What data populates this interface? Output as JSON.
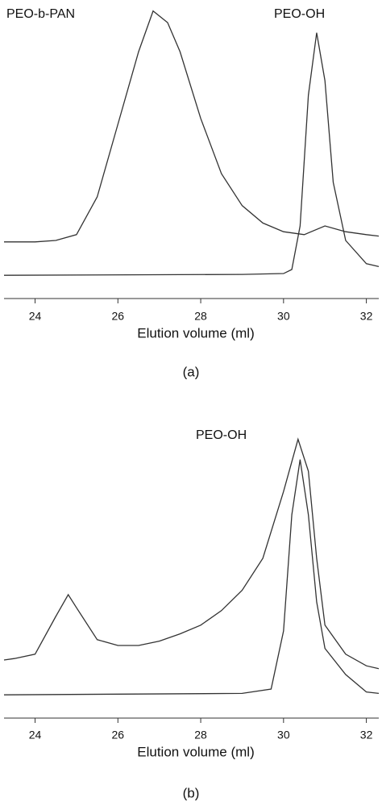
{
  "chart_data": [
    {
      "type": "line",
      "x_label": "Elution volume (ml)",
      "caption": "(a)",
      "xlim": [
        23.25,
        32.3
      ],
      "xticks": [
        24,
        26,
        28,
        30,
        32
      ],
      "ylim": [
        0,
        100
      ],
      "grid": false,
      "series": [
        {
          "name": "PEO-b-PAN",
          "color": "#333333",
          "x": [
            23.25,
            24,
            24.5,
            25,
            25.5,
            26,
            26.5,
            26.85,
            27.2,
            27.5,
            28,
            28.5,
            29,
            29.5,
            30,
            30.5,
            31,
            31.5,
            32,
            32.3
          ],
          "values": [
            19.5,
            19.5,
            20,
            22,
            35,
            60,
            85,
            99,
            95,
            85,
            62,
            43,
            32,
            26,
            23,
            22,
            25,
            23,
            22,
            21.5
          ]
        },
        {
          "name": "PEO-OH",
          "color": "#333333",
          "x": [
            23.25,
            29,
            30,
            30.2,
            30.4,
            30.6,
            30.8,
            31,
            31.2,
            31.5,
            32,
            32.3
          ],
          "values": [
            8,
            8.3,
            8.6,
            10,
            25,
            70,
            91.5,
            75,
            40,
            20,
            12,
            11
          ]
        }
      ]
    },
    {
      "type": "line",
      "x_label": "Elution volume (ml)",
      "caption": "(b)",
      "annotation": "PEO-OH",
      "xlim": [
        23.25,
        32.3
      ],
      "xticks": [
        24,
        26,
        28,
        30,
        32
      ],
      "ylim": [
        0,
        100
      ],
      "grid": false,
      "series": [
        {
          "color": "#333333",
          "x": [
            23.25,
            23.5,
            24,
            24.5,
            24.8,
            25,
            25.5,
            26,
            26.5,
            27,
            27.5,
            28,
            28.5,
            29,
            29.5,
            30,
            30.35,
            30.6,
            30.8,
            31,
            31.5,
            32,
            32.3
          ],
          "values": [
            20,
            20.5,
            22,
            35,
            42.5,
            38,
            27,
            25,
            25,
            26.5,
            29,
            32,
            37,
            44,
            55,
            78,
            96,
            85,
            55,
            32,
            22,
            18,
            17
          ]
        },
        {
          "color": "#333333",
          "x": [
            23.25,
            29,
            29.7,
            30,
            30.2,
            30.4,
            30.6,
            30.8,
            31,
            31.5,
            32,
            32.3
          ],
          "values": [
            8,
            8.5,
            10,
            30,
            70,
            89,
            70,
            40,
            24,
            15,
            9,
            8.5
          ]
        }
      ]
    }
  ]
}
